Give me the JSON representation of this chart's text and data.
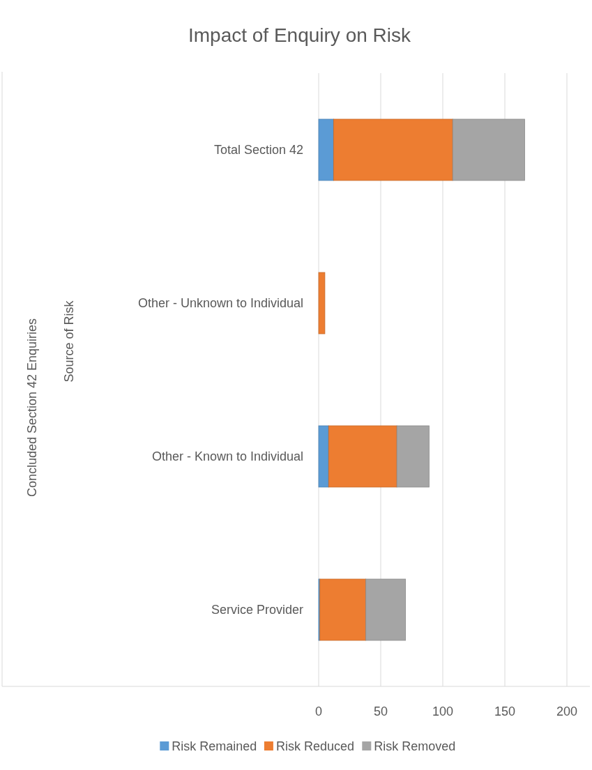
{
  "chart_data": {
    "type": "bar",
    "orientation": "horizontal",
    "stacked": true,
    "title": "Impact of Enquiry on Risk",
    "annotations": [
      "Concluded Section 42 Enquiries",
      "Source of Risk"
    ],
    "categories": [
      "Total Section 42",
      "Other - Unknown to Individual",
      "Other - Known to Individual",
      "Service Provider"
    ],
    "series": [
      {
        "name": "Risk Remained",
        "color": "#5b9bd5",
        "values": [
          12,
          0,
          8,
          1
        ]
      },
      {
        "name": "Risk Reduced",
        "color": "#ed7d31",
        "values": [
          96,
          5,
          55,
          37
        ]
      },
      {
        "name": "Risk Removed",
        "color": "#a5a5a5",
        "values": [
          58,
          0,
          26,
          32
        ]
      }
    ],
    "xlim": [
      0,
      200
    ],
    "xticks": [
      0,
      50,
      100,
      150,
      200
    ],
    "grid": "x",
    "legend": "bottom"
  }
}
